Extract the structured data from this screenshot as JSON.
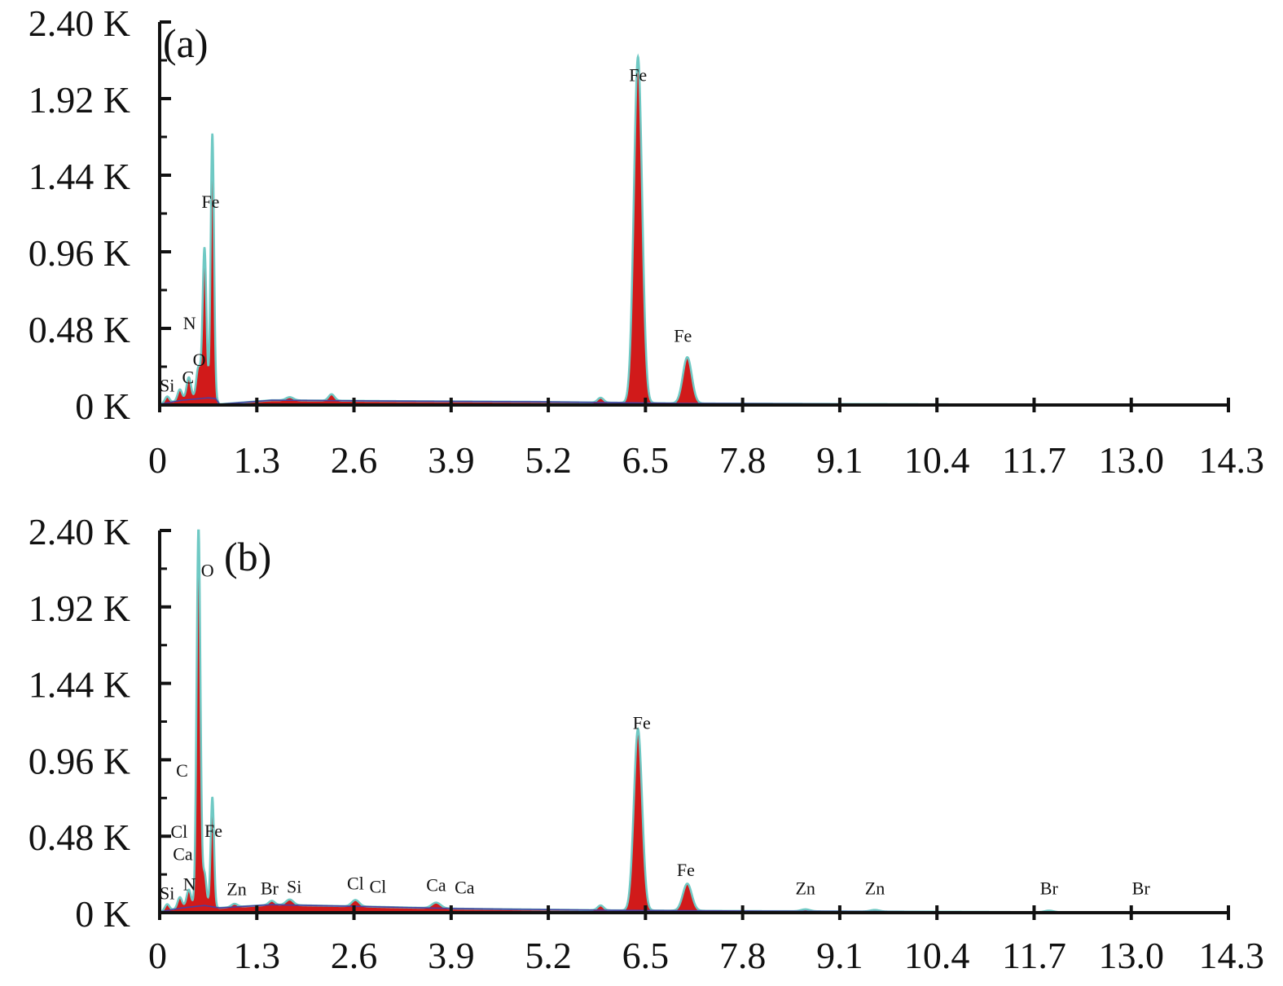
{
  "chart_data": [
    {
      "type": "area",
      "panel_label": "(a)",
      "xlabel": "",
      "ylabel": "",
      "xlim": [
        0,
        14.3
      ],
      "ylim": [
        0,
        2400
      ],
      "x_ticks": [
        "0",
        "1.3",
        "2.6",
        "3.9",
        "5.2",
        "6.5",
        "7.8",
        "9.1",
        "10.4",
        "11.7",
        "13.0",
        "14.3"
      ],
      "y_ticks": [
        "0 K",
        "0.48 K",
        "0.96 K",
        "1.44 K",
        "1.92 K",
        "2.40 K"
      ],
      "grid": false,
      "colors": {
        "fill": "#d11a1a",
        "outline": "#6fc9c4",
        "background_line": "#4a3fa0"
      },
      "spectrum": {
        "background": [
          [
            0.0,
            5
          ],
          [
            0.3,
            30
          ],
          [
            0.65,
            45
          ],
          [
            0.75,
            40
          ],
          [
            0.8,
            5
          ],
          [
            1.5,
            30
          ],
          [
            3.0,
            25
          ],
          [
            5.0,
            20
          ],
          [
            7.0,
            10
          ],
          [
            10.0,
            5
          ],
          [
            13.3,
            0
          ]
        ],
        "peaks": [
          {
            "energy": 0.1,
            "height": 40,
            "width": 0.03
          },
          {
            "energy": 0.27,
            "height": 70,
            "width": 0.03
          },
          {
            "energy": 0.39,
            "height": 140,
            "width": 0.03
          },
          {
            "energy": 0.52,
            "height": 200,
            "width": 0.03
          },
          {
            "energy": 0.6,
            "height": 940,
            "width": 0.025
          },
          {
            "energy": 0.705,
            "height": 1660,
            "width": 0.022
          },
          {
            "energy": 1.74,
            "height": 20,
            "width": 0.05
          },
          {
            "energy": 2.3,
            "height": 40,
            "width": 0.04
          },
          {
            "energy": 5.9,
            "height": 30,
            "width": 0.04
          },
          {
            "energy": 6.4,
            "height": 2170,
            "width": 0.055
          },
          {
            "energy": 7.06,
            "height": 290,
            "width": 0.06
          }
        ]
      },
      "peak_labels": [
        {
          "text": "Si",
          "x": 0.1,
          "y": 85
        },
        {
          "text": "C",
          "x": 0.38,
          "y": 135
        },
        {
          "text": "O",
          "x": 0.53,
          "y": 245
        },
        {
          "text": "N",
          "x": 0.4,
          "y": 475
        },
        {
          "text": "Fe",
          "x": 0.68,
          "y": 1235
        },
        {
          "text": "Fe",
          "x": 6.4,
          "y": 2030
        },
        {
          "text": "Fe",
          "x": 7.0,
          "y": 395
        }
      ]
    },
    {
      "type": "area",
      "panel_label": "(b)",
      "xlabel": "",
      "ylabel": "",
      "xlim": [
        0,
        14.3
      ],
      "ylim": [
        0,
        2400
      ],
      "x_ticks": [
        "0",
        "1.3",
        "2.6",
        "3.9",
        "5.2",
        "6.5",
        "7.8",
        "9.1",
        "10.4",
        "11.7",
        "13.0",
        "14.3"
      ],
      "y_ticks": [
        "0 K",
        "0.48 K",
        "0.96 K",
        "1.44 K",
        "1.92 K",
        "2.40 K"
      ],
      "grid": false,
      "colors": {
        "fill": "#d11a1a",
        "outline": "#6fc9c4",
        "background_line": "#4a3fa0"
      },
      "spectrum": {
        "background": [
          [
            0.0,
            5
          ],
          [
            0.3,
            30
          ],
          [
            0.6,
            45
          ],
          [
            0.8,
            30
          ],
          [
            1.5,
            50
          ],
          [
            2.6,
            40
          ],
          [
            4.0,
            25
          ],
          [
            6.0,
            15
          ],
          [
            8.0,
            10
          ],
          [
            11.0,
            5
          ],
          [
            13.3,
            0
          ]
        ],
        "peaks": [
          {
            "energy": 0.1,
            "height": 40,
            "width": 0.03
          },
          {
            "energy": 0.27,
            "height": 70,
            "width": 0.03
          },
          {
            "energy": 0.39,
            "height": 110,
            "width": 0.03
          },
          {
            "energy": 0.52,
            "height": 2400,
            "width": 0.025
          },
          {
            "energy": 0.6,
            "height": 200,
            "width": 0.025
          },
          {
            "energy": 0.705,
            "height": 690,
            "width": 0.022
          },
          {
            "energy": 1.0,
            "height": 20,
            "width": 0.04
          },
          {
            "energy": 1.5,
            "height": 25,
            "width": 0.04
          },
          {
            "energy": 1.74,
            "height": 35,
            "width": 0.05
          },
          {
            "energy": 2.62,
            "height": 40,
            "width": 0.05
          },
          {
            "energy": 3.7,
            "height": 35,
            "width": 0.06
          },
          {
            "energy": 5.9,
            "height": 30,
            "width": 0.04
          },
          {
            "energy": 6.4,
            "height": 1140,
            "width": 0.055
          },
          {
            "energy": 7.06,
            "height": 170,
            "width": 0.06
          },
          {
            "energy": 8.64,
            "height": 12,
            "width": 0.06
          },
          {
            "energy": 9.57,
            "height": 10,
            "width": 0.06
          },
          {
            "energy": 11.9,
            "height": 10,
            "width": 0.06
          }
        ]
      },
      "peak_labels": [
        {
          "text": "Si",
          "x": 0.1,
          "y": 85
        },
        {
          "text": "N",
          "x": 0.4,
          "y": 140
        },
        {
          "text": "Ca",
          "x": 0.31,
          "y": 330
        },
        {
          "text": "Cl",
          "x": 0.26,
          "y": 470
        },
        {
          "text": "C",
          "x": 0.3,
          "y": 855
        },
        {
          "text": "O",
          "x": 0.64,
          "y": 2110
        },
        {
          "text": "Fe",
          "x": 0.72,
          "y": 475
        },
        {
          "text": "Zn",
          "x": 1.03,
          "y": 110
        },
        {
          "text": "Br",
          "x": 1.47,
          "y": 115
        },
        {
          "text": "Si",
          "x": 1.8,
          "y": 125
        },
        {
          "text": "Cl",
          "x": 2.62,
          "y": 145
        },
        {
          "text": "Cl",
          "x": 2.92,
          "y": 125
        },
        {
          "text": "Ca",
          "x": 3.7,
          "y": 135
        },
        {
          "text": "Ca",
          "x": 4.08,
          "y": 120
        },
        {
          "text": "Fe",
          "x": 6.45,
          "y": 1155
        },
        {
          "text": "Fe",
          "x": 7.04,
          "y": 230
        },
        {
          "text": "Zn",
          "x": 8.64,
          "y": 115
        },
        {
          "text": "Zn",
          "x": 9.57,
          "y": 115
        },
        {
          "text": "Br",
          "x": 11.9,
          "y": 115
        },
        {
          "text": "Br",
          "x": 13.13,
          "y": 115
        }
      ]
    }
  ]
}
